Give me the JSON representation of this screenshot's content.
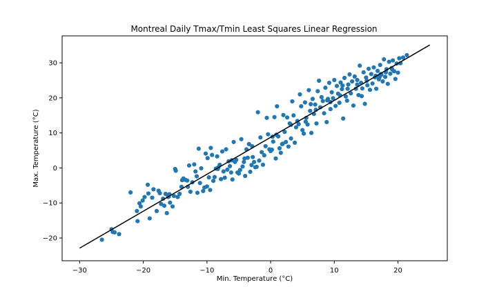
{
  "chart_data": {
    "type": "scatter",
    "title": "Montreal Daily Tmax/Tmin Least Squares Linear Regression",
    "xlabel": "Min. Temperature (°C)",
    "ylabel": "Max. Temperature (°C)",
    "xlim": [
      -32.75,
      27.75
    ],
    "ylim": [
      -26.5,
      37.7
    ],
    "x_ticks": [
      -30,
      -20,
      -10,
      0,
      10,
      20
    ],
    "y_ticks": [
      -20,
      -10,
      0,
      10,
      20,
      30
    ],
    "x_tick_labels": [
      "−30",
      "−20",
      "−10",
      "0",
      "10",
      "20"
    ],
    "y_tick_labels": [
      "−20",
      "−10",
      "0",
      "10",
      "20",
      "30"
    ],
    "grid": false,
    "marker_color": "#1f77b4",
    "line_color": "#000000",
    "regression_line": {
      "x": [
        -30,
        25
      ],
      "y": [
        -22.9,
        35.1
      ]
    },
    "points": [
      [
        -26.5,
        -20.5
      ],
      [
        -25,
        -17.5
      ],
      [
        -24.8,
        -18.3
      ],
      [
        -24.5,
        -18.4
      ],
      [
        -23.8,
        -18.9
      ],
      [
        -22,
        -7
      ],
      [
        -21,
        -12.3
      ],
      [
        -20.9,
        -15.2
      ],
      [
        -20.4,
        -11
      ],
      [
        -20.1,
        -9.3
      ],
      [
        -19.8,
        -8.3
      ],
      [
        -19.3,
        -4.8
      ],
      [
        -19.2,
        -7.3
      ],
      [
        -19,
        -14.4
      ],
      [
        -18.6,
        -8.5
      ],
      [
        -17.9,
        -12.3
      ],
      [
        -17.6,
        -6.5
      ],
      [
        -17.4,
        -7.2
      ],
      [
        -17.2,
        -10.3
      ],
      [
        -16.9,
        -8.8
      ],
      [
        -16.7,
        -10.8
      ],
      [
        -16.5,
        -7.4
      ],
      [
        -16.3,
        -12.9
      ],
      [
        -16.1,
        -8.3
      ],
      [
        -16,
        -8.2
      ],
      [
        -15.8,
        -9.9
      ],
      [
        -15.4,
        -11
      ],
      [
        -15.2,
        -8
      ],
      [
        -15,
        -0.3
      ],
      [
        -14.9,
        -0.8
      ],
      [
        -14.6,
        -8.3
      ],
      [
        -14.3,
        -7.4
      ],
      [
        -14,
        -5.4
      ],
      [
        -13.7,
        -3
      ],
      [
        -13.4,
        -3.4
      ],
      [
        -13.1,
        -3.6
      ],
      [
        -13,
        -5.4
      ],
      [
        -12.8,
        0.7
      ],
      [
        -12.6,
        -6.8
      ],
      [
        -12.3,
        -4.1
      ],
      [
        -12,
        1
      ],
      [
        -11.8,
        -1
      ],
      [
        -11.5,
        -7.1
      ],
      [
        -11.3,
        5.5
      ],
      [
        -11.1,
        -4.3
      ],
      [
        -10.9,
        -0.1
      ],
      [
        -10.6,
        -6.6
      ],
      [
        -10.4,
        -5.6
      ],
      [
        -10.2,
        4.1
      ],
      [
        -10,
        -5.3
      ],
      [
        -9.9,
        2.8
      ],
      [
        -9.7,
        -2.7
      ],
      [
        -9.5,
        -6.3
      ],
      [
        -9.4,
        5.7
      ],
      [
        -9.2,
        3.7
      ],
      [
        -9,
        -3.7
      ],
      [
        -8.8,
        -2.6
      ],
      [
        -8.6,
        -0.2
      ],
      [
        -8.4,
        3.3
      ],
      [
        -8.2,
        0.2
      ],
      [
        -8,
        0.9
      ],
      [
        -7.8,
        -3.2
      ],
      [
        -7.6,
        4.7
      ],
      [
        -7.4,
        -1
      ],
      [
        -7.2,
        -2.8
      ],
      [
        -7,
        5.3
      ],
      [
        -6.8,
        -0.5
      ],
      [
        -6.6,
        1.9
      ],
      [
        -6.4,
        0.5
      ],
      [
        -6.2,
        -1.3
      ],
      [
        -6,
        -3.3
      ],
      [
        -5.8,
        7.4
      ],
      [
        -5.6,
        1.7
      ],
      [
        -5.4,
        2.3
      ],
      [
        -5.2,
        -1.3
      ],
      [
        -5,
        -1.6
      ],
      [
        -4.8,
        -0.6
      ],
      [
        -4.6,
        8.2
      ],
      [
        -4.4,
        0.4
      ],
      [
        -4.2,
        1.7
      ],
      [
        -4,
        -2.3
      ],
      [
        -3.8,
        5.3
      ],
      [
        -3.6,
        2.9
      ],
      [
        -3.4,
        6.8
      ],
      [
        -3.2,
        -1.1
      ],
      [
        -3,
        0.8
      ],
      [
        -2.8,
        3.1
      ],
      [
        -2.6,
        1.7
      ],
      [
        -2.4,
        0.2
      ],
      [
        -2.2,
        0.3
      ],
      [
        -2,
        15.9
      ],
      [
        -1.8,
        2.1
      ],
      [
        -1.6,
        8.7
      ],
      [
        -1.4,
        4.5
      ],
      [
        -1.2,
        0.9
      ],
      [
        -1,
        3.6
      ],
      [
        -0.8,
        6.2
      ],
      [
        -0.6,
        14.3
      ],
      [
        -0.4,
        9.6
      ],
      [
        -0.2,
        5.3
      ],
      [
        0,
        4.8
      ],
      [
        0.2,
        5.2
      ],
      [
        0.4,
        7.5
      ],
      [
        0.6,
        14.5
      ],
      [
        0.8,
        2.7
      ],
      [
        1,
        17.6
      ],
      [
        1.2,
        9
      ],
      [
        1.4,
        5.6
      ],
      [
        1.6,
        4.3
      ],
      [
        1.8,
        6.8
      ],
      [
        2,
        15.1
      ],
      [
        2.2,
        10.3
      ],
      [
        2.4,
        7.4
      ],
      [
        2.6,
        14.4
      ],
      [
        2.8,
        6.1
      ],
      [
        3,
        12.7
      ],
      [
        3.2,
        8.4
      ],
      [
        3.4,
        19
      ],
      [
        3.6,
        15
      ],
      [
        3.8,
        7.2
      ],
      [
        4,
        11.6
      ],
      [
        4.2,
        13.4
      ],
      [
        4.4,
        12.5
      ],
      [
        4.6,
        21
      ],
      [
        4.8,
        17.6
      ],
      [
        5,
        10.8
      ],
      [
        5.2,
        9.8
      ],
      [
        5.4,
        18.7
      ],
      [
        5.6,
        14.3
      ],
      [
        5.8,
        12.4
      ],
      [
        6,
        22.2
      ],
      [
        6.2,
        16.3
      ],
      [
        6.4,
        10
      ],
      [
        6.6,
        19.7
      ],
      [
        6.8,
        15.4
      ],
      [
        7,
        18.1
      ],
      [
        7.2,
        12.7
      ],
      [
        7.4,
        21.9
      ],
      [
        7.6,
        24.9
      ],
      [
        7.8,
        17.3
      ],
      [
        8,
        20.2
      ],
      [
        8.2,
        19.1
      ],
      [
        8.4,
        15.6
      ],
      [
        8.6,
        22.9
      ],
      [
        8.8,
        13.1
      ],
      [
        9,
        19.7
      ],
      [
        9.2,
        24.3
      ],
      [
        9.4,
        16.8
      ],
      [
        9.6,
        21.6
      ],
      [
        9.8,
        19.9
      ],
      [
        10,
        25.1
      ],
      [
        10.2,
        17.7
      ],
      [
        10.4,
        23.4
      ],
      [
        10.6,
        21.2
      ],
      [
        10.8,
        18.6
      ],
      [
        11,
        24.4
      ],
      [
        11.2,
        22.5
      ],
      [
        11.4,
        14.1
      ],
      [
        11.6,
        25.7
      ],
      [
        11.8,
        20.4
      ],
      [
        12,
        19.2
      ],
      [
        12.2,
        23.8
      ],
      [
        12.4,
        26.7
      ],
      [
        12.6,
        21.3
      ],
      [
        12.8,
        24.7
      ],
      [
        13,
        17.8
      ],
      [
        13.2,
        26.1
      ],
      [
        13.4,
        22.6
      ],
      [
        13.6,
        25.1
      ],
      [
        13.8,
        20.8
      ],
      [
        14,
        29.2
      ],
      [
        14.2,
        24.3
      ],
      [
        14.4,
        22.7
      ],
      [
        14.6,
        27.3
      ],
      [
        14.8,
        18.3
      ],
      [
        15,
        25.8
      ],
      [
        15.2,
        23.6
      ],
      [
        15.4,
        28.3
      ],
      [
        15.6,
        22.3
      ],
      [
        15.8,
        26.8
      ],
      [
        16,
        24.1
      ],
      [
        16.2,
        28.7
      ],
      [
        16.4,
        25.9
      ],
      [
        16.6,
        22.6
      ],
      [
        16.8,
        27.7
      ],
      [
        17,
        25.3
      ],
      [
        17.2,
        29.4
      ],
      [
        17.4,
        26.6
      ],
      [
        17.6,
        24.7
      ],
      [
        17.8,
        31
      ],
      [
        18,
        26
      ],
      [
        18.2,
        28.2
      ],
      [
        18.4,
        24
      ],
      [
        18.6,
        30.3
      ],
      [
        18.8,
        26.9
      ],
      [
        19,
        28.5
      ],
      [
        19.2,
        30.7
      ],
      [
        19.4,
        27.6
      ],
      [
        19.6,
        25.4
      ],
      [
        19.8,
        29.8
      ],
      [
        20,
        27.2
      ],
      [
        20.2,
        31.3
      ],
      [
        20.4,
        29.9
      ],
      [
        20.8,
        31.5
      ],
      [
        21.4,
        32.2
      ],
      [
        14.3,
        20.5
      ],
      [
        12.1,
        22.6
      ],
      [
        16.5,
        26.3
      ],
      [
        17.1,
        25.9
      ],
      [
        17.3,
        26.8
      ],
      [
        16.9,
        26.1
      ],
      [
        8.9,
        19.3
      ],
      [
        9.4,
        18.8
      ],
      [
        6.3,
        18.2
      ],
      [
        3.2,
        12.3
      ],
      [
        0.9,
        9.5
      ],
      [
        0.3,
        8.9
      ],
      [
        -2.9,
        6.2
      ],
      [
        -6.1,
        2.2
      ],
      [
        -8.3,
        -0.3
      ],
      [
        -11.6,
        -2.4
      ],
      [
        -13.9,
        -3.5
      ],
      [
        -18.4,
        -6.1
      ],
      [
        -20.6,
        -10.1
      ],
      [
        -15.9,
        -7.5
      ],
      [
        -4.1,
        2.7
      ],
      [
        1.9,
        6.9
      ],
      [
        5.5,
        13.2
      ],
      [
        10.9,
        20.7
      ],
      [
        13.6,
        23.8
      ],
      [
        15.1,
        24.9
      ],
      [
        18.1,
        27.3
      ],
      [
        19.1,
        28.1
      ],
      [
        11.3,
        23.5
      ],
      [
        7.1,
        16.6
      ]
    ]
  }
}
